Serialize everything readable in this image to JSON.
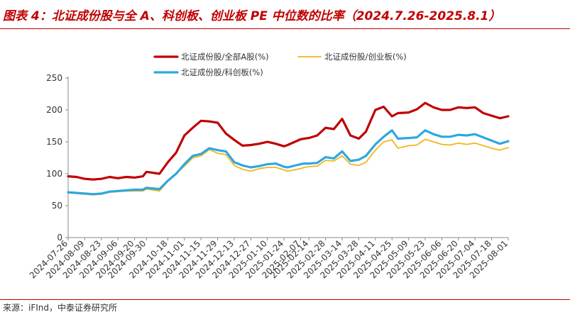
{
  "header": {
    "title": "图表 4：北证成份股与全 A、科创板、创业板 PE 中位数的比率（2024.7.26-2025.8.1）",
    "source": "来源：iFInd，中泰证券研究所"
  },
  "colors": {
    "series1": "#c00000",
    "series2": "#f2b619",
    "series3": "#2ea7e0",
    "accent": "#c00000",
    "axis": "#888888"
  },
  "chart_data": {
    "type": "line",
    "title": "",
    "xlabel": "",
    "ylabel": "",
    "ylim": [
      0,
      250
    ],
    "yticks": [
      0,
      50,
      100,
      150,
      200,
      250
    ],
    "grid": false,
    "legend_position": "top",
    "x_tick_labels": [
      "2024-07-26",
      "2024-08-09",
      "2024-08-23",
      "2024-09-06",
      "2024-09-20",
      "2024-09-30",
      "2024-10-18",
      "2024-11-01",
      "2024-11-15",
      "2024-11-29",
      "2024-12-13",
      "2024-12-27",
      "2025-01-10",
      "2025-01-24",
      "2025-02-07",
      "2025-02-14",
      "2025-02-28",
      "2025-03-14",
      "2025-03-28",
      "2025-04-11",
      "2025-04-25",
      "2025-05-09",
      "2025-05-23",
      "2025-06-06",
      "2025-06-20",
      "2025-07-04",
      "2025-07-18",
      "2025-08-01"
    ],
    "x": [
      "2024-07-26",
      "2024-08-02",
      "2024-08-09",
      "2024-08-16",
      "2024-08-23",
      "2024-08-30",
      "2024-09-06",
      "2024-09-13",
      "2024-09-20",
      "2024-09-27",
      "2024-09-30",
      "2024-10-11",
      "2024-10-18",
      "2024-10-25",
      "2024-11-01",
      "2024-11-08",
      "2024-11-15",
      "2024-11-22",
      "2024-11-29",
      "2024-12-06",
      "2024-12-13",
      "2024-12-20",
      "2024-12-27",
      "2025-01-03",
      "2025-01-10",
      "2025-01-17",
      "2025-01-24",
      "2025-01-27",
      "2025-02-07",
      "2025-02-10",
      "2025-02-14",
      "2025-02-21",
      "2025-02-28",
      "2025-03-07",
      "2025-03-14",
      "2025-03-21",
      "2025-03-28",
      "2025-04-03",
      "2025-04-11",
      "2025-04-18",
      "2025-04-25",
      "2025-04-30",
      "2025-05-09",
      "2025-05-16",
      "2025-05-23",
      "2025-05-30",
      "2025-06-06",
      "2025-06-13",
      "2025-06-20",
      "2025-06-27",
      "2025-07-04",
      "2025-07-11",
      "2025-07-18",
      "2025-07-25",
      "2025-08-01"
    ],
    "series": [
      {
        "name": "北证成份股/全部A股(%)",
        "values": [
          96,
          95,
          92,
          91,
          92,
          95,
          93,
          95,
          94,
          96,
          103,
          100,
          118,
          133,
          160,
          172,
          183,
          182,
          180,
          163,
          153,
          144,
          145,
          147,
          150,
          147,
          143,
          145,
          154,
          155,
          156,
          160,
          172,
          170,
          186,
          160,
          155,
          166,
          200,
          205,
          190,
          195,
          196,
          201,
          211,
          204,
          200,
          200,
          204,
          203,
          204,
          195,
          191,
          187,
          190
        ]
      },
      {
        "name": "北证成份股/创业板(%)",
        "values": [
          70,
          69,
          68,
          67,
          68,
          71,
          72,
          73,
          73,
          73,
          76,
          73,
          88,
          100,
          112,
          125,
          128,
          138,
          132,
          130,
          113,
          107,
          104,
          108,
          110,
          110,
          106,
          104,
          108,
          110,
          111,
          112,
          121,
          120,
          128,
          115,
          113,
          118,
          137,
          150,
          153,
          140,
          144,
          145,
          154,
          150,
          146,
          145,
          148,
          146,
          148,
          144,
          140,
          137,
          141
        ]
      },
      {
        "name": "北证成份股/科创板(%)",
        "values": [
          71,
          70,
          69,
          68,
          69,
          72,
          73,
          74,
          75,
          75,
          78,
          76,
          89,
          100,
          115,
          128,
          131,
          140,
          137,
          135,
          118,
          113,
          110,
          112,
          115,
          116,
          111,
          110,
          115,
          116,
          116,
          117,
          126,
          124,
          135,
          120,
          122,
          128,
          146,
          158,
          168,
          155,
          156,
          157,
          168,
          162,
          158,
          158,
          161,
          160,
          162,
          157,
          152,
          147,
          151
        ]
      }
    ]
  }
}
